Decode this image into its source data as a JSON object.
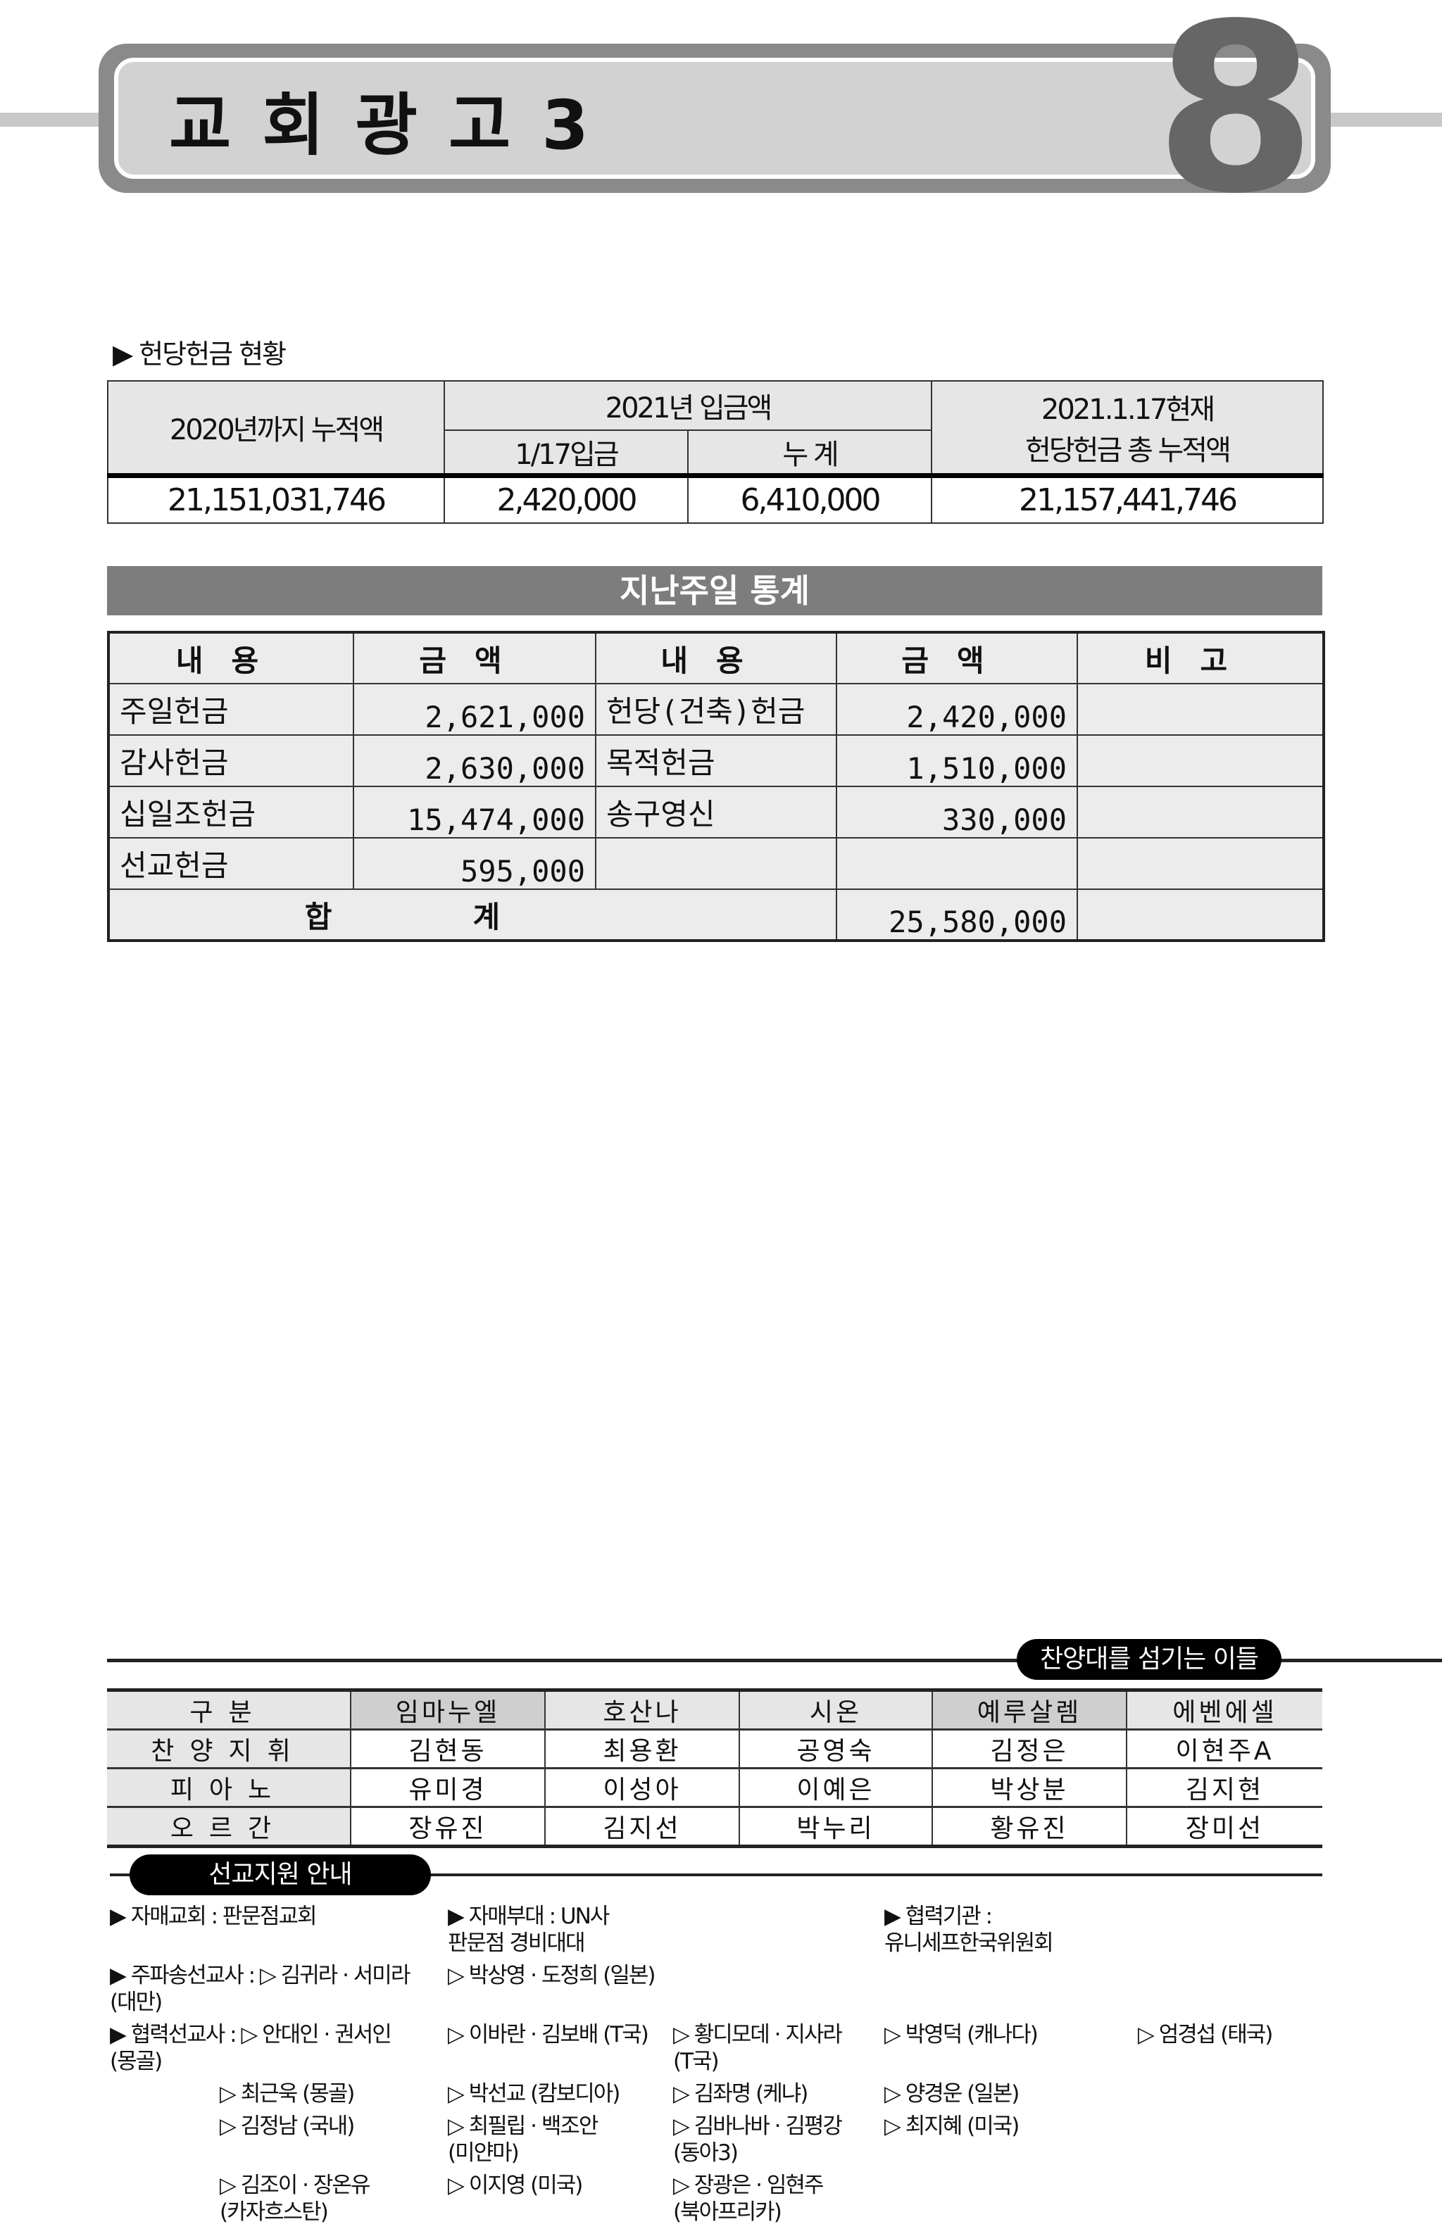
{
  "header": {
    "title": "교회광고3",
    "page_number": "8"
  },
  "offering": {
    "section_label": "▶ 헌당헌금 현황",
    "col1": "2020년까지 누적액",
    "col2": "2021년 입금액",
    "col2a": "1/17입금",
    "col2b": "누 계",
    "col3a": "2021.1.17현재",
    "col3b": "헌당헌금 총 누적액",
    "values": [
      "21,151,031,746",
      "2,420,000",
      "6,410,000",
      "21,157,441,746"
    ]
  },
  "stats": {
    "banner": "지난주일 통계",
    "headers": [
      "내용",
      "금액",
      "내용",
      "금액",
      "비고"
    ],
    "rows": [
      [
        "주일헌금",
        "2,621,000",
        "헌당(건축)헌금",
        "2,420,000",
        ""
      ],
      [
        "감사헌금",
        "2,630,000",
        "목적헌금",
        "1,510,000",
        ""
      ],
      [
        "십일조헌금",
        "15,474,000",
        "송구영신",
        "330,000",
        ""
      ],
      [
        "선교헌금",
        "595,000",
        "",
        "",
        ""
      ]
    ],
    "total_label": "합계",
    "total": "25,580,000"
  },
  "choir": {
    "title": "찬양대를 섬기는 이들",
    "headers": [
      "구분",
      "임마누엘",
      "호산나",
      "시온",
      "예루살렘",
      "에벤에셀"
    ],
    "rows": [
      [
        "찬양지휘",
        "김현동",
        "최용환",
        "공영숙",
        "김정은",
        "이현주A"
      ],
      [
        "피아노",
        "유미경",
        "이성아",
        "이예은",
        "박상분",
        "김지현"
      ],
      [
        "오르간",
        "장유진",
        "김지선",
        "박누리",
        "황유진",
        "장미선"
      ]
    ]
  },
  "mission": {
    "title": "선교지원 안내",
    "lines": [
      [
        "▶ 자매교회 : 판문점교회",
        "▶ 자매부대 : UN사 판문점 경비대대",
        "",
        "▶ 협력기관 : 유니세프한국위원회",
        ""
      ],
      [
        "▶ 주파송선교사 : ▷ 김귀라 · 서미라 (대만)",
        "▷ 박상영 · 도정희 (일본)",
        "",
        "",
        ""
      ],
      [
        "▶ 협력선교사 : ▷ 안대인 · 권서인 (몽골)",
        "▷ 이바란 · 김보배 (T국)",
        "▷ 황디모데 · 지사라 (T국)",
        "▷ 박영덕 (캐나다)",
        "▷ 엄경섭 (태국)"
      ],
      [
        "▷ 최근욱 (몽골)",
        "▷ 박선교 (캄보디아)",
        "▷ 김좌명 (케냐)",
        "▷ 양경운 (일본)",
        ""
      ],
      [
        "▷ 김정남 (국내)",
        "▷ 최필립 · 백조안 (미얀마)",
        "▷ 김바나바 · 김평강 (동아3)",
        "▷ 최지혜 (미국)",
        ""
      ],
      [
        "▷ 김조이 · 장온유 (카자흐스탄)",
        "▷ 이지영 (미국)",
        "▷ 장광은 · 임현주 (북아프리카)",
        "",
        ""
      ]
    ]
  }
}
